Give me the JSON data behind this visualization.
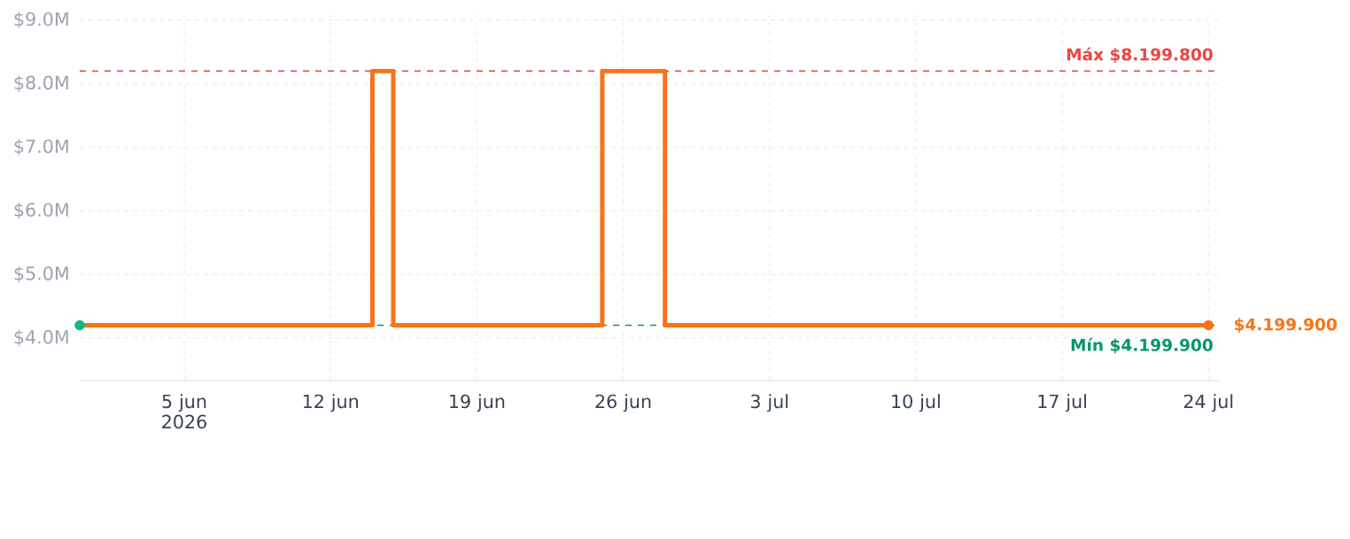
{
  "chart_data": {
    "type": "step",
    "x": [
      "2026-05-31",
      "2026-06-14",
      "2026-06-15",
      "2026-06-25",
      "2026-06-28",
      "2026-07-24"
    ],
    "series": [
      {
        "color": "#f97316",
        "values": [
          4.1999,
          8.1998,
          4.1999,
          8.1998,
          4.1999,
          4.1999
        ]
      },
      {
        "type": "scatter",
        "x": [
          "2026-07-24"
        ],
        "values": [
          4.1999
        ],
        "color": "#f97316",
        "marker": "circle"
      },
      {
        "type": "scatter",
        "x": [
          "2026-05-31"
        ],
        "values": [
          4.1999
        ],
        "color": "#10b981",
        "marker": "circle"
      }
    ],
    "xlim": [
      "2026-05-31",
      "2026-07-24T13:00"
    ],
    "xticks": [
      {
        "value": "2026-06-05",
        "label": "5 jun 2026"
      },
      {
        "value": "2026-06-12",
        "label": "12 jun"
      },
      {
        "value": "2026-06-19",
        "label": "19 jun"
      },
      {
        "value": "2026-06-26",
        "label": "26 jun"
      },
      {
        "value": "2026-07-03",
        "label": "3 jul"
      },
      {
        "value": "2026-07-10",
        "label": "10 jul"
      },
      {
        "value": "2026-07-17",
        "label": "17 jul"
      },
      {
        "value": "2026-07-24",
        "label": "24 jul"
      }
    ],
    "ylim": [
      3.33,
      9.08
    ],
    "yticks": [
      {
        "value": 4,
        "label": "$4.0M"
      },
      {
        "value": 5,
        "label": "$5.0M"
      },
      {
        "value": 6,
        "label": "$6.0M"
      },
      {
        "value": 7,
        "label": "$7.0M"
      },
      {
        "value": 8,
        "label": "$8.0M"
      },
      {
        "value": 9,
        "label": "$9.0M"
      }
    ],
    "grid": true,
    "ref_lines": [
      {
        "axis": "y",
        "value": 8.1998,
        "label": "Máx $8.199.800",
        "color": "#ef4444",
        "line_style": "dashed"
      },
      {
        "axis": "y",
        "value": 4.1999,
        "label": "Mín $4.199.900",
        "color": "#059669",
        "line_style": "dashed"
      }
    ],
    "annotations": [
      {
        "text": "$4.199.900",
        "x": "2026-07-24",
        "y": 4.1999
      }
    ]
  }
}
